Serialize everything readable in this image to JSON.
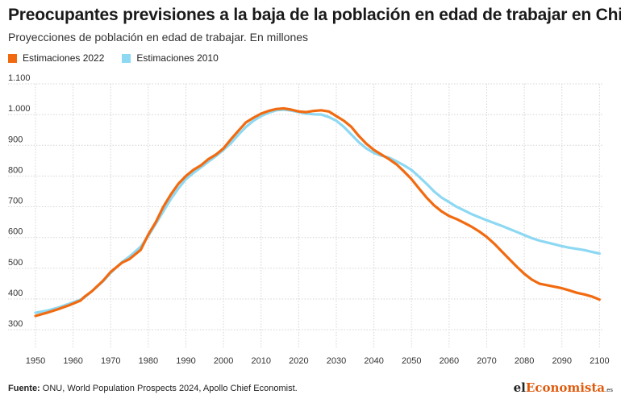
{
  "header": {
    "title": "Preocupantes previsiones a la baja de la población en edad de trabajar en China",
    "subtitle": "Proyecciones de población en edad de trabajar. En millones"
  },
  "footer": {
    "source_label": "Fuente:",
    "source_text": "ONU, World Population Prospects 2024, Apollo Chief Economist."
  },
  "logo": {
    "part1": "el",
    "part2": "Economista",
    "part3": ".es"
  },
  "colors": {
    "orange": "#f26a10",
    "blue": "#8dd8f2",
    "grid": "#d4d4d4"
  },
  "chart_data": {
    "type": "line",
    "title": "Preocupantes previsiones a la baja de la población en edad de trabajar en China",
    "subtitle": "Proyecciones de población en edad de trabajar. En millones",
    "xlabel": "",
    "ylabel": "",
    "xlim": [
      1950,
      2101
    ],
    "ylim": [
      240,
      1100
    ],
    "grid": true,
    "legend_position": "top-left",
    "y_ticks": [
      {
        "value": 300,
        "label": "300"
      },
      {
        "value": 400,
        "label": "400"
      },
      {
        "value": 500,
        "label": "500"
      },
      {
        "value": 600,
        "label": "600"
      },
      {
        "value": 700,
        "label": "700"
      },
      {
        "value": 800,
        "label": "800"
      },
      {
        "value": 900,
        "label": "900"
      },
      {
        "value": 1000,
        "label": "1.000"
      },
      {
        "value": 1100,
        "label": "1.100"
      }
    ],
    "x_ticks": [
      {
        "value": 1950,
        "label": "1950"
      },
      {
        "value": 1960,
        "label": "1960"
      },
      {
        "value": 1970,
        "label": "1970"
      },
      {
        "value": 1980,
        "label": "1980"
      },
      {
        "value": 1990,
        "label": "1990"
      },
      {
        "value": 2000,
        "label": "2000"
      },
      {
        "value": 2010,
        "label": "2010"
      },
      {
        "value": 2020,
        "label": "2020"
      },
      {
        "value": 2030,
        "label": "2030"
      },
      {
        "value": 2040,
        "label": "2040"
      },
      {
        "value": 2050,
        "label": "2050"
      },
      {
        "value": 2060,
        "label": "2060"
      },
      {
        "value": 2070,
        "label": "2070"
      },
      {
        "value": 2080,
        "label": "2080"
      },
      {
        "value": 2090,
        "label": "2090"
      },
      {
        "value": 2100,
        "label": "2100"
      }
    ],
    "series": [
      {
        "name": "Estimaciones 2022",
        "color": "#f26a10",
        "points": [
          [
            1950,
            345
          ],
          [
            1953,
            355
          ],
          [
            1956,
            367
          ],
          [
            1959,
            380
          ],
          [
            1962,
            395
          ],
          [
            1963,
            407
          ],
          [
            1965,
            425
          ],
          [
            1968,
            460
          ],
          [
            1970,
            488
          ],
          [
            1973,
            518
          ],
          [
            1975,
            530
          ],
          [
            1978,
            560
          ],
          [
            1980,
            610
          ],
          [
            1982,
            650
          ],
          [
            1984,
            700
          ],
          [
            1986,
            740
          ],
          [
            1988,
            775
          ],
          [
            1990,
            800
          ],
          [
            1992,
            820
          ],
          [
            1994,
            835
          ],
          [
            1996,
            855
          ],
          [
            1998,
            870
          ],
          [
            2000,
            890
          ],
          [
            2002,
            920
          ],
          [
            2004,
            948
          ],
          [
            2006,
            975
          ],
          [
            2008,
            990
          ],
          [
            2010,
            1003
          ],
          [
            2012,
            1012
          ],
          [
            2014,
            1018
          ],
          [
            2016,
            1020
          ],
          [
            2018,
            1016
          ],
          [
            2020,
            1010
          ],
          [
            2022,
            1008
          ],
          [
            2024,
            1012
          ],
          [
            2026,
            1014
          ],
          [
            2028,
            1010
          ],
          [
            2030,
            995
          ],
          [
            2032,
            980
          ],
          [
            2034,
            960
          ],
          [
            2036,
            930
          ],
          [
            2038,
            905
          ],
          [
            2040,
            885
          ],
          [
            2042,
            870
          ],
          [
            2044,
            855
          ],
          [
            2046,
            838
          ],
          [
            2048,
            815
          ],
          [
            2050,
            790
          ],
          [
            2052,
            760
          ],
          [
            2054,
            730
          ],
          [
            2056,
            705
          ],
          [
            2058,
            685
          ],
          [
            2060,
            670
          ],
          [
            2062,
            660
          ],
          [
            2064,
            648
          ],
          [
            2066,
            635
          ],
          [
            2068,
            620
          ],
          [
            2070,
            602
          ],
          [
            2072,
            580
          ],
          [
            2074,
            555
          ],
          [
            2076,
            530
          ],
          [
            2078,
            505
          ],
          [
            2080,
            482
          ],
          [
            2082,
            463
          ],
          [
            2084,
            450
          ],
          [
            2086,
            445
          ],
          [
            2088,
            440
          ],
          [
            2090,
            435
          ],
          [
            2092,
            428
          ],
          [
            2094,
            420
          ],
          [
            2096,
            415
          ],
          [
            2098,
            408
          ],
          [
            2100,
            398
          ]
        ]
      },
      {
        "name": "Estimaciones 2010",
        "color": "#8dd8f2",
        "points": [
          [
            1950,
            355
          ],
          [
            1953,
            362
          ],
          [
            1956,
            372
          ],
          [
            1959,
            385
          ],
          [
            1962,
            398
          ],
          [
            1963,
            405
          ],
          [
            1965,
            425
          ],
          [
            1968,
            458
          ],
          [
            1970,
            485
          ],
          [
            1973,
            520
          ],
          [
            1975,
            538
          ],
          [
            1978,
            570
          ],
          [
            1980,
            605
          ],
          [
            1982,
            645
          ],
          [
            1984,
            685
          ],
          [
            1986,
            725
          ],
          [
            1988,
            760
          ],
          [
            1990,
            790
          ],
          [
            1992,
            810
          ],
          [
            1994,
            828
          ],
          [
            1996,
            847
          ],
          [
            1998,
            865
          ],
          [
            2000,
            885
          ],
          [
            2002,
            907
          ],
          [
            2004,
            935
          ],
          [
            2006,
            960
          ],
          [
            2008,
            980
          ],
          [
            2010,
            995
          ],
          [
            2012,
            1006
          ],
          [
            2014,
            1014
          ],
          [
            2016,
            1016
          ],
          [
            2018,
            1013
          ],
          [
            2020,
            1008
          ],
          [
            2022,
            1003
          ],
          [
            2024,
            1001
          ],
          [
            2026,
            1000
          ],
          [
            2028,
            992
          ],
          [
            2030,
            980
          ],
          [
            2032,
            960
          ],
          [
            2034,
            935
          ],
          [
            2036,
            910
          ],
          [
            2038,
            890
          ],
          [
            2040,
            875
          ],
          [
            2042,
            866
          ],
          [
            2044,
            860
          ],
          [
            2046,
            848
          ],
          [
            2048,
            835
          ],
          [
            2050,
            820
          ],
          [
            2052,
            798
          ],
          [
            2054,
            775
          ],
          [
            2056,
            750
          ],
          [
            2058,
            730
          ],
          [
            2060,
            715
          ],
          [
            2062,
            700
          ],
          [
            2064,
            688
          ],
          [
            2066,
            676
          ],
          [
            2068,
            666
          ],
          [
            2070,
            656
          ],
          [
            2072,
            647
          ],
          [
            2074,
            638
          ],
          [
            2076,
            628
          ],
          [
            2078,
            618
          ],
          [
            2080,
            608
          ],
          [
            2082,
            598
          ],
          [
            2084,
            590
          ],
          [
            2086,
            584
          ],
          [
            2088,
            578
          ],
          [
            2090,
            572
          ],
          [
            2092,
            567
          ],
          [
            2094,
            563
          ],
          [
            2096,
            559
          ],
          [
            2098,
            553
          ],
          [
            2100,
            548
          ]
        ]
      }
    ]
  }
}
